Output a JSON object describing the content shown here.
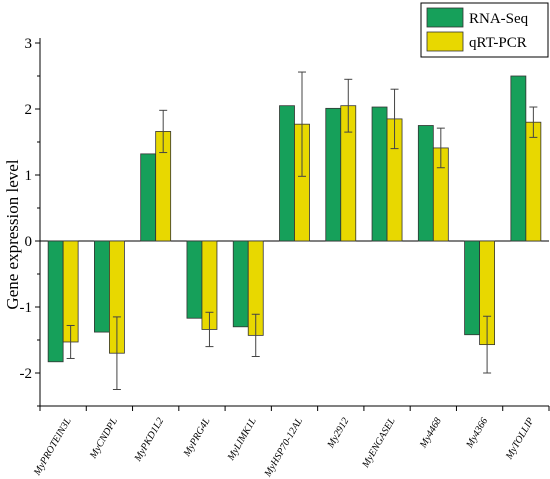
{
  "chart_data": {
    "type": "bar",
    "title": "",
    "xlabel": "",
    "ylabel": "Gene expression level",
    "ylim": [
      -2.5,
      3
    ],
    "yticks": [
      -2,
      -1,
      0,
      1,
      2,
      3
    ],
    "grid": false,
    "legend_position": "top-right",
    "categories": [
      "MyPROTEIN3L",
      "MyCNDPL",
      "MyPKD1L2",
      "MyPRG4L",
      "MyLIMK1L",
      "MyHSP70-12AL",
      "My2912",
      "MyENGASEL",
      "My4468",
      "My4366",
      "MyTOLLIP"
    ],
    "series": [
      {
        "name": "RNA-Seq",
        "color": "#16a05a",
        "values": [
          -1.83,
          -1.38,
          1.32,
          -1.17,
          -1.3,
          2.05,
          2.01,
          2.03,
          1.75,
          -1.42,
          2.5
        ],
        "errors": [
          0,
          0,
          0,
          0,
          0,
          0,
          0,
          0,
          0,
          0,
          0
        ]
      },
      {
        "name": "qRT-PCR",
        "color": "#e8d800",
        "values": [
          -1.53,
          -1.7,
          1.66,
          -1.34,
          -1.43,
          1.77,
          2.05,
          1.85,
          1.41,
          -1.57,
          1.8
        ],
        "errors": [
          0.25,
          0.55,
          0.32,
          0.26,
          0.32,
          0.79,
          0.4,
          0.45,
          0.3,
          0.43,
          0.23
        ]
      }
    ]
  }
}
